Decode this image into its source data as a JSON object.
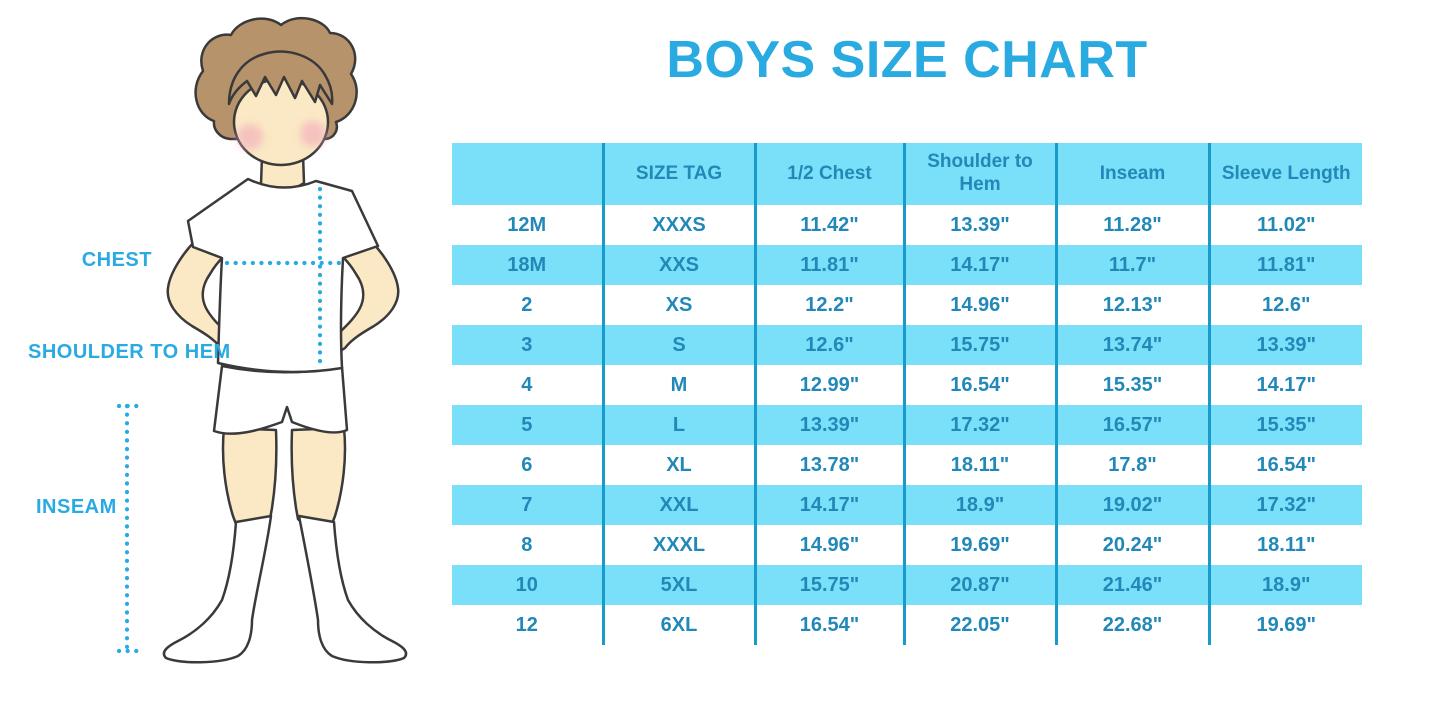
{
  "title": "BOYS SIZE CHART",
  "figure": {
    "chest_label": "CHEST",
    "shoulder_label": "SHOULDER TO HEM",
    "inseam_label": "INSEAM"
  },
  "colors": {
    "accent_blue": "#29ABE2",
    "table_fill": "#7AE0F9",
    "table_line": "#189BCB",
    "table_text": "#2188B8",
    "outline": "#3A3A3A",
    "hair": "#B6936B",
    "skin": "#FAE9C4",
    "cheek": "#F2A9BC"
  },
  "chart_data": {
    "type": "table",
    "title": "BOYS SIZE CHART",
    "columns": [
      "",
      "SIZE TAG",
      "1/2 Chest",
      "Shoulder to Hem",
      "Inseam",
      "Sleeve Length"
    ],
    "rows": [
      [
        "12M",
        "XXXS",
        "11.42\"",
        "13.39\"",
        "11.28\"",
        "11.02\""
      ],
      [
        "18M",
        "XXS",
        "11.81\"",
        "14.17\"",
        "11.7\"",
        "11.81\""
      ],
      [
        "2",
        "XS",
        "12.2\"",
        "14.96\"",
        "12.13\"",
        "12.6\""
      ],
      [
        "3",
        "S",
        "12.6\"",
        "15.75\"",
        "13.74\"",
        "13.39\""
      ],
      [
        "4",
        "M",
        "12.99\"",
        "16.54\"",
        "15.35\"",
        "14.17\""
      ],
      [
        "5",
        "L",
        "13.39\"",
        "17.32\"",
        "16.57\"",
        "15.35\""
      ],
      [
        "6",
        "XL",
        "13.78\"",
        "18.11\"",
        "17.8\"",
        "16.54\""
      ],
      [
        "7",
        "XXL",
        "14.17\"",
        "18.9\"",
        "19.02\"",
        "17.32\""
      ],
      [
        "8",
        "XXXL",
        "14.96\"",
        "19.69\"",
        "20.24\"",
        "18.11\""
      ],
      [
        "10",
        "5XL",
        "15.75\"",
        "20.87\"",
        "21.46\"",
        "18.9\""
      ],
      [
        "12",
        "6XL",
        "16.54\"",
        "22.05\"",
        "22.68\"",
        "19.69\""
      ]
    ]
  }
}
